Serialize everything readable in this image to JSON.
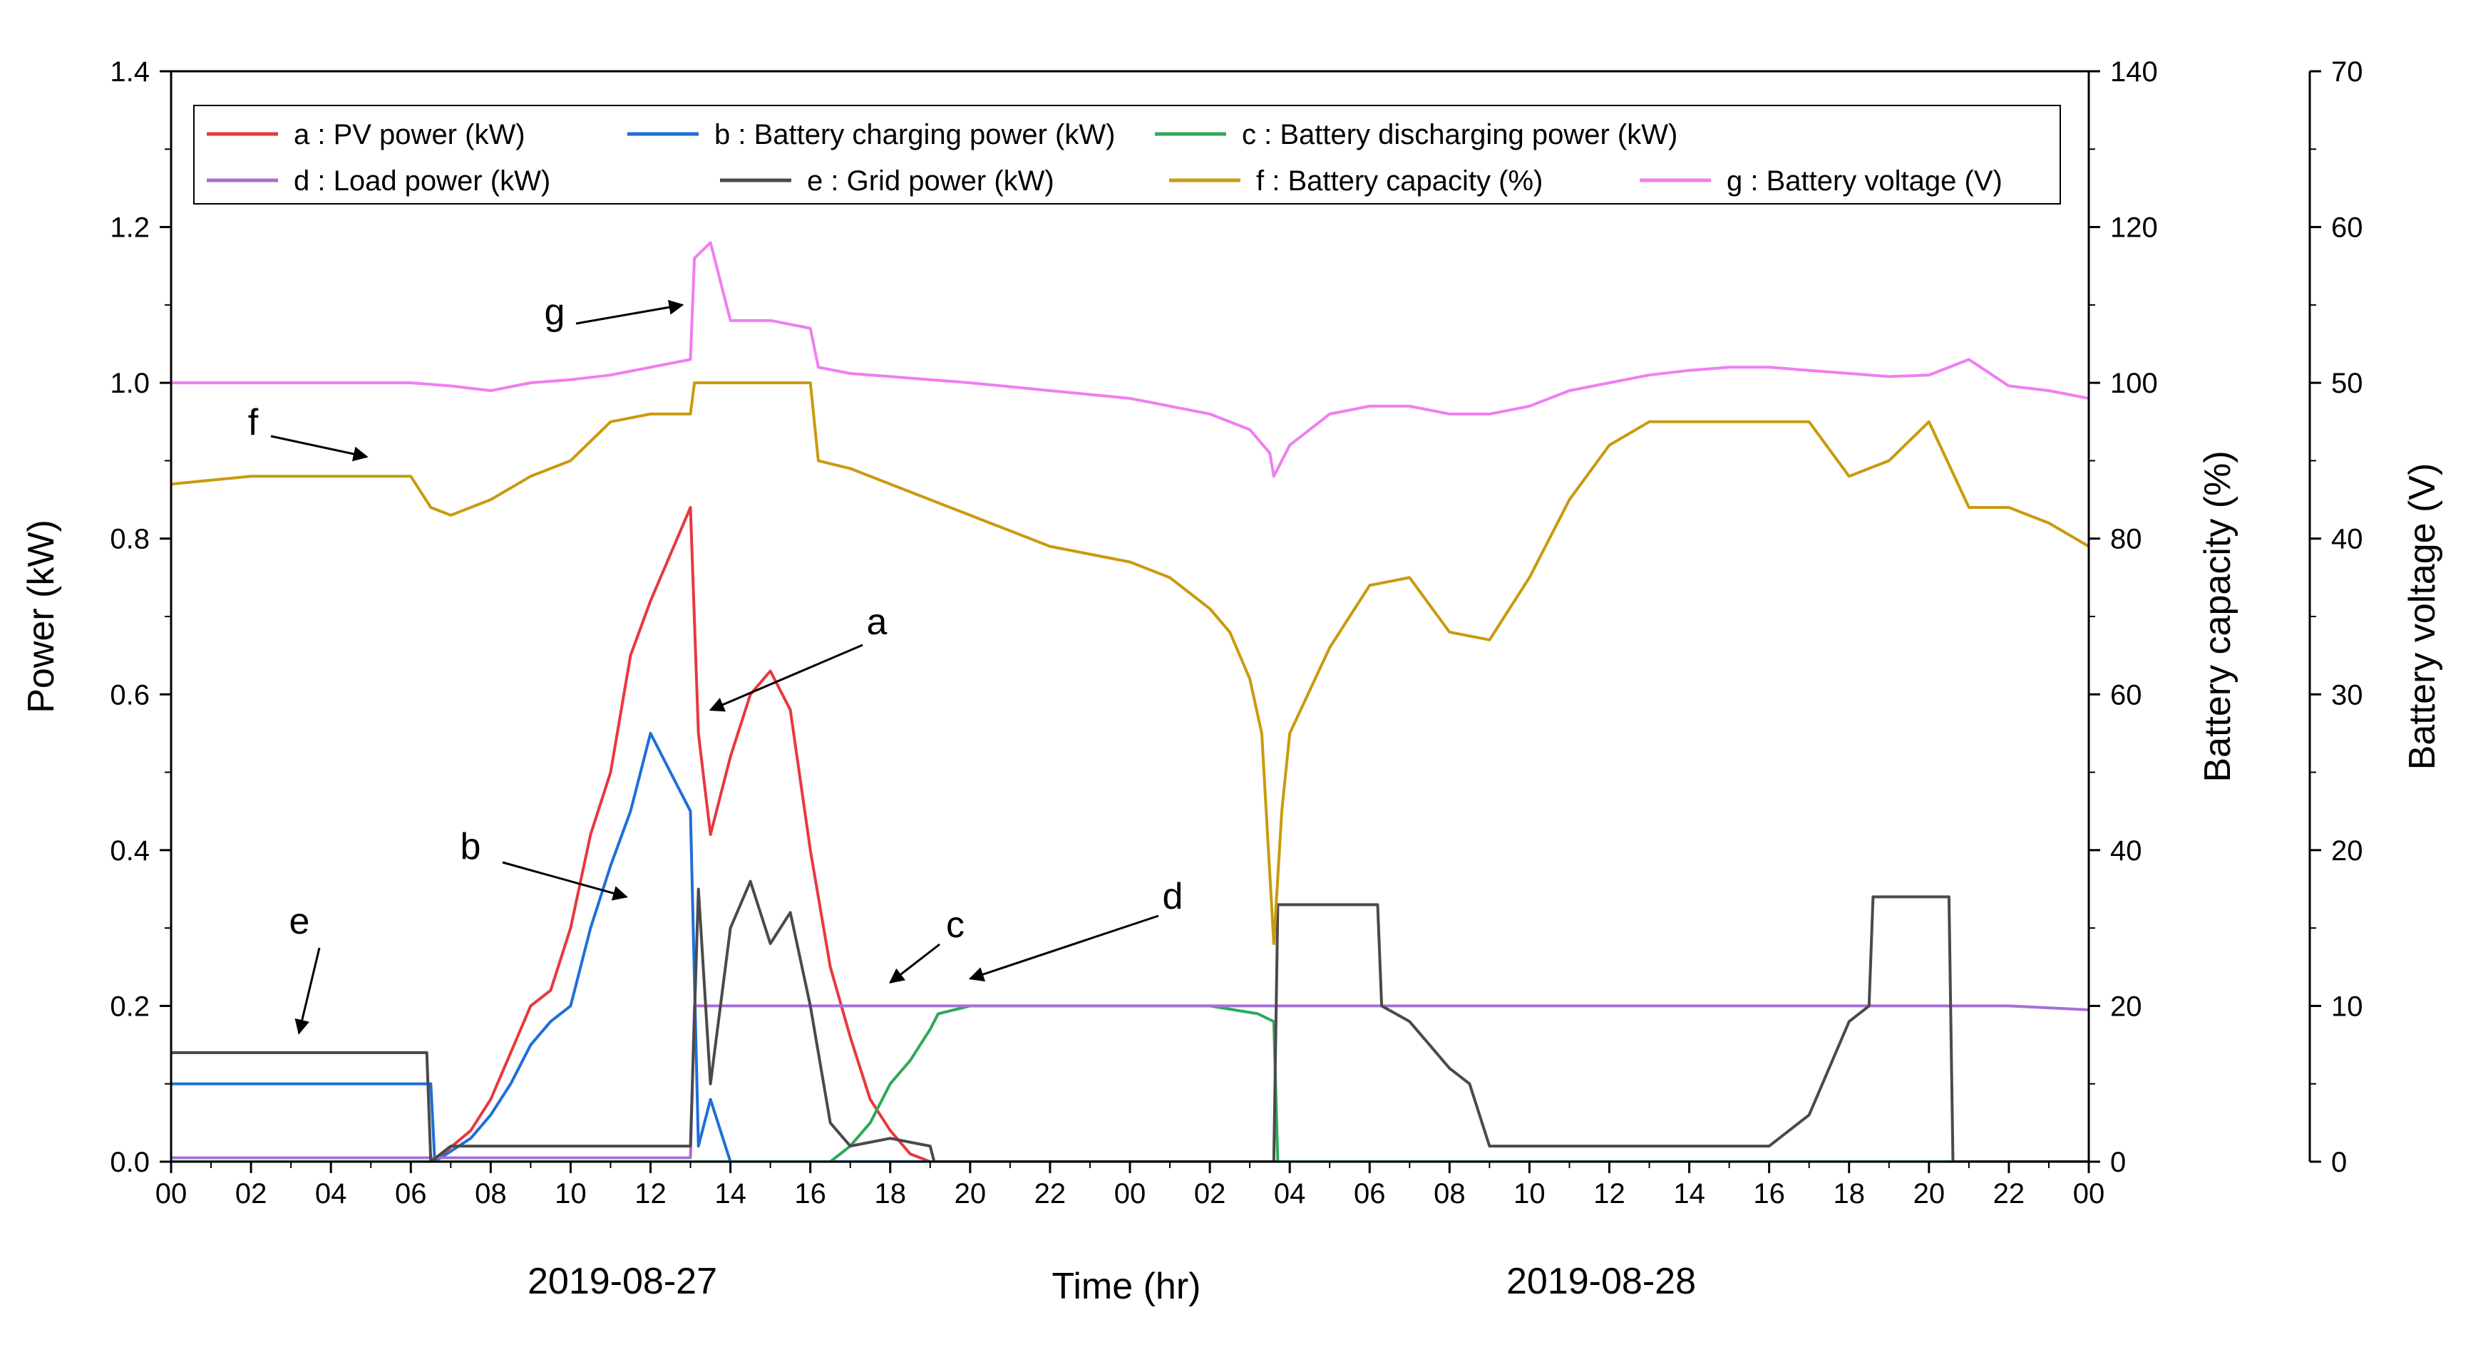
{
  "chart_data": {
    "type": "line",
    "xlabel": "Time (hr)",
    "xlim": [
      0,
      48
    ],
    "x_tick_labels": [
      "00",
      "02",
      "04",
      "06",
      "08",
      "10",
      "12",
      "14",
      "16",
      "18",
      "20",
      "22",
      "00",
      "02",
      "04",
      "06",
      "08",
      "10",
      "12",
      "14",
      "16",
      "18",
      "20",
      "22",
      "00"
    ],
    "x_tick_step_hours": 2,
    "date_labels": [
      {
        "text": "2019-08-27",
        "center_hour": 12
      },
      {
        "text": "2019-08-28",
        "center_hour": 36
      }
    ],
    "axes": {
      "power": {
        "label": "Power (kW)",
        "ylim": [
          0,
          1.4
        ],
        "ticks": [
          "0.0",
          "0.2",
          "0.4",
          "0.6",
          "0.8",
          "1.0",
          "1.2",
          "1.4"
        ]
      },
      "capacity": {
        "label": "Battery capacity (%)",
        "ylim": [
          0,
          140
        ],
        "ticks": [
          "0",
          "20",
          "40",
          "60",
          "80",
          "100",
          "120",
          "140"
        ]
      },
      "voltage": {
        "label": "Battery voltage (V)",
        "ylim": [
          0,
          70
        ],
        "ticks": [
          "0",
          "10",
          "20",
          "30",
          "40",
          "50",
          "60",
          "70"
        ]
      }
    },
    "series": [
      {
        "key": "a",
        "name": "a : PV power (kW)",
        "axis": "power",
        "color": "#e8383d",
        "x": [
          0,
          6.5,
          6.8,
          7.5,
          8,
          8.5,
          9,
          9.5,
          10,
          10.5,
          11,
          11.5,
          12,
          12.5,
          13,
          13.2,
          13.5,
          14,
          14.5,
          15,
          15.5,
          16,
          16.5,
          17,
          17.5,
          18,
          18.5,
          19,
          48
        ],
        "y": [
          0,
          0,
          0.01,
          0.04,
          0.08,
          0.14,
          0.2,
          0.22,
          0.3,
          0.42,
          0.5,
          0.65,
          0.72,
          0.78,
          0.84,
          0.55,
          0.42,
          0.52,
          0.6,
          0.63,
          0.58,
          0.4,
          0.25,
          0.16,
          0.08,
          0.04,
          0.01,
          0,
          0
        ]
      },
      {
        "key": "b",
        "name": "b : Battery charging power (kW)",
        "axis": "power",
        "color": "#1f6fd6",
        "x": [
          0,
          6.5,
          6.6,
          7.5,
          8,
          8.5,
          9,
          9.5,
          10,
          10.5,
          11,
          11.5,
          12,
          12.5,
          13,
          13.2,
          13.5,
          14,
          48
        ],
        "y": [
          0.1,
          0.1,
          0,
          0.03,
          0.06,
          0.1,
          0.15,
          0.18,
          0.2,
          0.3,
          0.38,
          0.45,
          0.55,
          0.5,
          0.45,
          0.02,
          0.08,
          0,
          0
        ]
      },
      {
        "key": "c",
        "name": "c : Battery discharging power (kW)",
        "axis": "power",
        "color": "#2fa85a",
        "x": [
          0,
          16.5,
          17,
          17.5,
          18,
          18.5,
          19,
          19.2,
          20,
          22,
          24,
          26,
          27.2,
          27.6,
          27.7,
          48
        ],
        "y": [
          0,
          0,
          0.02,
          0.05,
          0.1,
          0.13,
          0.17,
          0.19,
          0.2,
          0.2,
          0.2,
          0.2,
          0.19,
          0.18,
          0,
          0
        ]
      },
      {
        "key": "d",
        "name": "d : Load power (kW)",
        "axis": "power",
        "color": "#a86fd6",
        "x": [
          0,
          13,
          13.1,
          14,
          16,
          18,
          20,
          22,
          24,
          26,
          28,
          30,
          32,
          34,
          36,
          38,
          40,
          42,
          44,
          46,
          48
        ],
        "y": [
          0.005,
          0.005,
          0.2,
          0.2,
          0.2,
          0.2,
          0.2,
          0.2,
          0.2,
          0.2,
          0.2,
          0.2,
          0.2,
          0.2,
          0.2,
          0.2,
          0.2,
          0.2,
          0.2,
          0.2,
          0.195
        ]
      },
      {
        "key": "e",
        "name": "e : Grid power (kW)",
        "axis": "power",
        "color": "#4a4a4a",
        "x": [
          0,
          6.4,
          6.5,
          7,
          13,
          13.2,
          13.5,
          14,
          14.5,
          15,
          15.5,
          16,
          16.5,
          17,
          18,
          19,
          19.1,
          27.6,
          27.7,
          30.2,
          30.3,
          31,
          31.5,
          32,
          32.5,
          33,
          33.5,
          34,
          36,
          38,
          40,
          41,
          42,
          42.5,
          42.6,
          44.5,
          44.6,
          48
        ],
        "y": [
          0.14,
          0.14,
          0,
          0.02,
          0.02,
          0.35,
          0.1,
          0.3,
          0.36,
          0.28,
          0.32,
          0.2,
          0.05,
          0.02,
          0.03,
          0.02,
          0,
          0,
          0.33,
          0.33,
          0.2,
          0.18,
          0.15,
          0.12,
          0.1,
          0.02,
          0.02,
          0.02,
          0.02,
          0.02,
          0.02,
          0.06,
          0.18,
          0.2,
          0.34,
          0.34,
          0,
          0
        ]
      },
      {
        "key": "f",
        "name": "f : Battery capacity (%)",
        "axis": "capacity",
        "color": "#c99a0e",
        "x": [
          0,
          2,
          4,
          6,
          6.5,
          7,
          8,
          9,
          10,
          11,
          12,
          13,
          13.1,
          14,
          15,
          16,
          16.2,
          17,
          18,
          19,
          20,
          21,
          22,
          23,
          24,
          25,
          26,
          26.5,
          27,
          27.3,
          27.6,
          27.8,
          28,
          29,
          30,
          31,
          32,
          33,
          34,
          35,
          36,
          37,
          38,
          39,
          40,
          41,
          42,
          43,
          44,
          45,
          46,
          47,
          48
        ],
        "y": [
          87,
          88,
          88,
          88,
          84,
          83,
          85,
          88,
          90,
          95,
          96,
          96,
          100,
          100,
          100,
          100,
          90,
          89,
          87,
          85,
          83,
          81,
          79,
          78,
          77,
          75,
          71,
          68,
          62,
          55,
          28,
          45,
          55,
          66,
          74,
          75,
          68,
          67,
          75,
          85,
          92,
          95,
          95,
          95,
          95,
          95,
          88,
          90,
          95,
          84,
          84,
          82,
          79
        ]
      },
      {
        "key": "g",
        "name": "g : Battery voltage (V)",
        "axis": "voltage",
        "color": "#f07ef0",
        "x": [
          0,
          2,
          4,
          6,
          7,
          8,
          9,
          10,
          11,
          12,
          13,
          13.1,
          13.5,
          14,
          15,
          16,
          16.2,
          17,
          18,
          19,
          20,
          22,
          24,
          25,
          26,
          27,
          27.5,
          27.6,
          28,
          29,
          30,
          31,
          32,
          33,
          34,
          35,
          36,
          37,
          38,
          39,
          40,
          41,
          42,
          43,
          44,
          45,
          46,
          47,
          48
        ],
        "y": [
          50,
          50,
          50,
          50,
          49.8,
          49.5,
          50,
          50.2,
          50.5,
          51,
          51.5,
          58,
          59,
          54,
          54,
          53.5,
          51,
          50.6,
          50.4,
          50.2,
          50,
          49.5,
          49,
          48.5,
          48,
          47,
          45.5,
          44,
          46,
          48,
          48.5,
          48.5,
          48,
          48,
          48.5,
          49.5,
          50,
          50.5,
          50.8,
          51,
          51,
          50.8,
          50.6,
          50.4,
          50.5,
          51.5,
          49.8,
          49.5,
          49
        ]
      }
    ],
    "legend": {
      "placement": "top-center",
      "entries": [
        "a : PV power (kW)",
        "b : Battery charging power (kW)",
        "c : Battery discharging power (kW)",
        "d : Load power (kW)",
        "e : Grid power (kW)",
        "f : Battery capacity (%)",
        "g : Battery voltage (V)"
      ]
    },
    "annotations": [
      {
        "label": "a",
        "target_hour": 13.5,
        "target_value": 0.58,
        "axis": "power"
      },
      {
        "label": "b",
        "target_hour": 11.4,
        "target_value": 0.34,
        "axis": "power"
      },
      {
        "label": "c",
        "target_hour": 18.0,
        "target_value": 0.23,
        "axis": "power"
      },
      {
        "label": "d",
        "target_hour": 20.0,
        "target_value": 0.235,
        "axis": "power"
      },
      {
        "label": "e",
        "target_hour": 3.2,
        "target_value": 0.165,
        "axis": "power"
      },
      {
        "label": "f",
        "target_hour": 4.9,
        "target_value": 0.905,
        "axis": "power"
      },
      {
        "label": "g",
        "target_hour": 12.8,
        "target_value": 1.1,
        "axis": "power"
      }
    ],
    "grid": false
  }
}
